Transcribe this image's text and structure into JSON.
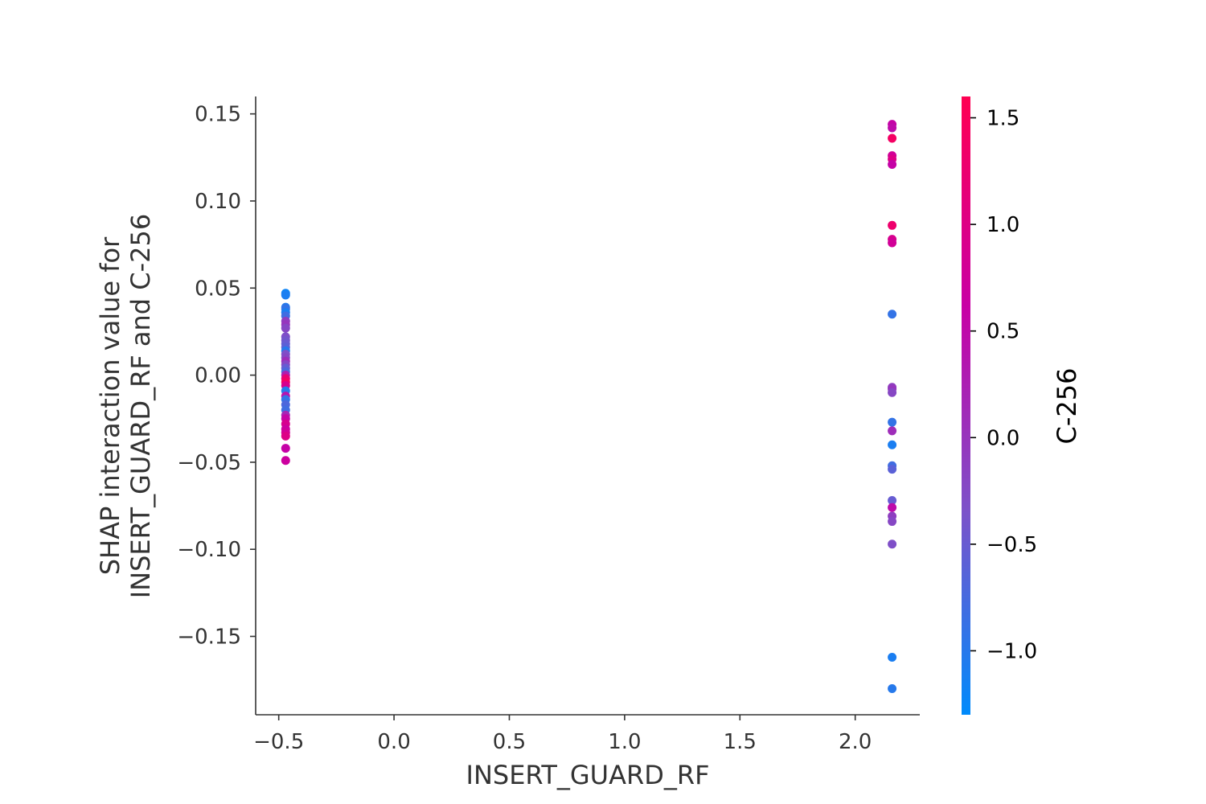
{
  "chart_data": {
    "type": "scatter",
    "title": "",
    "xlabel": "INSERT_GUARD_RF",
    "ylabel_lines": [
      "SHAP interaction value for",
      "INSERT_GUARD_RF and C-256"
    ],
    "xlim": [
      -0.6,
      2.28
    ],
    "ylim": [
      -0.195,
      0.16
    ],
    "xticks": [
      -0.5,
      0.0,
      0.5,
      1.0,
      1.5,
      2.0
    ],
    "xtick_labels": [
      "−0.5",
      "0.0",
      "0.5",
      "1.0",
      "1.5",
      "2.0"
    ],
    "yticks": [
      0.15,
      0.1,
      0.05,
      0.0,
      -0.05,
      -0.1,
      -0.15
    ],
    "ytick_labels": [
      "0.15",
      "0.10",
      "0.05",
      "0.00",
      "−0.05",
      "−0.10",
      "−0.15"
    ],
    "colorbar": {
      "label": "C-256",
      "range": [
        -1.3,
        1.6
      ],
      "ticks": [
        1.5,
        1.0,
        0.5,
        0.0,
        -0.5,
        -1.0
      ],
      "tick_labels": [
        "1.5",
        "1.0",
        "0.5",
        "0.0",
        "−0.5",
        "−1.0"
      ],
      "colors": [
        "#008afb",
        "#7c52c9",
        "#c800a5",
        "#ff0052"
      ]
    },
    "grid": false,
    "points": [
      {
        "x": -0.47,
        "y": 0.047,
        "c": -1.2
      },
      {
        "x": -0.47,
        "y": 0.046,
        "c": -1.1
      },
      {
        "x": -0.47,
        "y": 0.039,
        "c": -1.0
      },
      {
        "x": -0.47,
        "y": 0.038,
        "c": -0.9
      },
      {
        "x": -0.47,
        "y": 0.036,
        "c": -1.1
      },
      {
        "x": -0.47,
        "y": 0.034,
        "c": -0.8
      },
      {
        "x": -0.47,
        "y": 0.031,
        "c": -0.1
      },
      {
        "x": -0.47,
        "y": 0.029,
        "c": 0.0
      },
      {
        "x": -0.47,
        "y": 0.027,
        "c": -0.2
      },
      {
        "x": -0.47,
        "y": 0.022,
        "c": -0.3
      },
      {
        "x": -0.47,
        "y": 0.02,
        "c": -0.4
      },
      {
        "x": -0.47,
        "y": 0.018,
        "c": -0.5
      },
      {
        "x": -0.47,
        "y": 0.016,
        "c": -0.6
      },
      {
        "x": -0.47,
        "y": 0.014,
        "c": -1.0
      },
      {
        "x": -0.47,
        "y": 0.012,
        "c": -0.3
      },
      {
        "x": -0.47,
        "y": 0.01,
        "c": -0.2
      },
      {
        "x": -0.47,
        "y": 0.008,
        "c": 0.1
      },
      {
        "x": -0.47,
        "y": 0.006,
        "c": -0.2
      },
      {
        "x": -0.47,
        "y": 0.004,
        "c": -0.5
      },
      {
        "x": -0.47,
        "y": 0.002,
        "c": -0.7
      },
      {
        "x": -0.47,
        "y": 0.0,
        "c": 0.3
      },
      {
        "x": -0.47,
        "y": -0.002,
        "c": 1.2
      },
      {
        "x": -0.47,
        "y": -0.004,
        "c": 1.4
      },
      {
        "x": -0.47,
        "y": -0.006,
        "c": 0.9
      },
      {
        "x": -0.47,
        "y": -0.009,
        "c": -1.0
      },
      {
        "x": -0.47,
        "y": -0.012,
        "c": 0.4
      },
      {
        "x": -0.47,
        "y": -0.014,
        "c": -0.9
      },
      {
        "x": -0.47,
        "y": -0.017,
        "c": -0.7
      },
      {
        "x": -0.47,
        "y": -0.02,
        "c": -0.8
      },
      {
        "x": -0.47,
        "y": -0.023,
        "c": 0.2
      },
      {
        "x": -0.47,
        "y": -0.025,
        "c": 0.6
      },
      {
        "x": -0.47,
        "y": -0.028,
        "c": 0.9
      },
      {
        "x": -0.47,
        "y": -0.031,
        "c": 0.7
      },
      {
        "x": -0.47,
        "y": -0.033,
        "c": 0.8
      },
      {
        "x": -0.47,
        "y": -0.035,
        "c": 1.0
      },
      {
        "x": -0.47,
        "y": -0.042,
        "c": 0.6
      },
      {
        "x": -0.47,
        "y": -0.049,
        "c": 0.7
      },
      {
        "x": 2.16,
        "y": 0.144,
        "c": 0.6
      },
      {
        "x": 2.16,
        "y": 0.142,
        "c": 0.5
      },
      {
        "x": 2.16,
        "y": 0.136,
        "c": 1.4
      },
      {
        "x": 2.16,
        "y": 0.126,
        "c": 0.8
      },
      {
        "x": 2.16,
        "y": 0.124,
        "c": 1.0
      },
      {
        "x": 2.16,
        "y": 0.121,
        "c": 0.6
      },
      {
        "x": 2.16,
        "y": 0.086,
        "c": 1.3
      },
      {
        "x": 2.16,
        "y": 0.078,
        "c": 0.9
      },
      {
        "x": 2.16,
        "y": 0.076,
        "c": 0.8
      },
      {
        "x": 2.16,
        "y": 0.035,
        "c": -0.9
      },
      {
        "x": 2.16,
        "y": -0.007,
        "c": -0.1
      },
      {
        "x": 2.16,
        "y": -0.008,
        "c": 0.0
      },
      {
        "x": 2.16,
        "y": -0.01,
        "c": -0.2
      },
      {
        "x": 2.16,
        "y": -0.027,
        "c": -0.9
      },
      {
        "x": 2.16,
        "y": -0.032,
        "c": 0.1
      },
      {
        "x": 2.16,
        "y": -0.04,
        "c": -1.1
      },
      {
        "x": 2.16,
        "y": -0.052,
        "c": -0.8
      },
      {
        "x": 2.16,
        "y": -0.054,
        "c": -0.6
      },
      {
        "x": 2.16,
        "y": -0.072,
        "c": -0.5
      },
      {
        "x": 2.16,
        "y": -0.076,
        "c": 0.5
      },
      {
        "x": 2.16,
        "y": -0.081,
        "c": -0.1
      },
      {
        "x": 2.16,
        "y": -0.084,
        "c": -0.2
      },
      {
        "x": 2.16,
        "y": -0.097,
        "c": -0.3
      },
      {
        "x": 2.16,
        "y": -0.162,
        "c": -1.1
      },
      {
        "x": 2.16,
        "y": -0.18,
        "c": -1.0
      }
    ]
  }
}
